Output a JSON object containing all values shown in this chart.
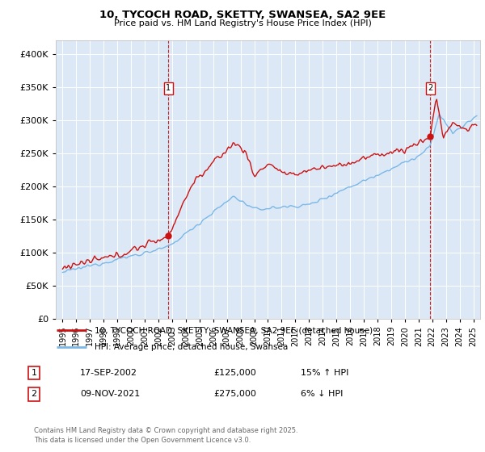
{
  "title": "10, TYCOCH ROAD, SKETTY, SWANSEA, SA2 9EE",
  "subtitle": "Price paid vs. HM Land Registry's House Price Index (HPI)",
  "sale1_date": "17-SEP-2002",
  "sale1_price": 125000,
  "sale1_label": "15% ↑ HPI",
  "sale2_date": "09-NOV-2021",
  "sale2_price": 275000,
  "sale2_label": "6% ↓ HPI",
  "legend_line1": "10, TYCOCH ROAD, SKETTY, SWANSEA, SA2 9EE (detached house)",
  "legend_line2": "HPI: Average price, detached house, Swansea",
  "footer": "Contains HM Land Registry data © Crown copyright and database right 2025.\nThis data is licensed under the Open Government Licence v3.0.",
  "hpi_color": "#7ab8e8",
  "price_color": "#cc1111",
  "background_color": "#dce8f5",
  "sale1_year": 2002.72,
  "sale2_year": 2021.86,
  "sale1_price_actual": 125000,
  "sale2_price_actual": 275000
}
